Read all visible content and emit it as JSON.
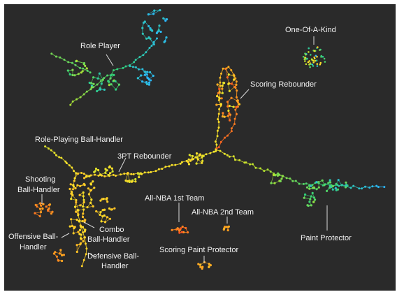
{
  "diagram": {
    "background_color": "#2a2a2a",
    "label_color": "#f2f2f2",
    "node_gradient": [
      "#2bb7ff",
      "#31d07a",
      "#b9e32d",
      "#ffe12a",
      "#ff9b1f",
      "#ff4b21"
    ],
    "labels": {
      "role_player": "Role Player",
      "one_of_a_kind": "One-Of-A-Kind",
      "scoring_rebounder": "Scoring Rebounder",
      "role_playing_ball_handler": "Role-Playing Ball-Handler",
      "three_pt_rebounder": "3PT Rebounder",
      "shooting_ball_handler_1": "Shooting",
      "shooting_ball_handler_2": "Ball-Handler",
      "all_nba_1st_team": "All-NBA 1st Team",
      "all_nba_2nd_team": "All-NBA 2nd Team",
      "combo_ball_handler_1": "Combo",
      "combo_ball_handler_2": "Ball-Handler",
      "offensive_ball_handler_1": "Offensive Ball-",
      "offensive_ball_handler_2": "Handler",
      "defensive_ball_handler_1": "Defensive Ball-",
      "defensive_ball_handler_2": "Handler",
      "paint_protector": "Paint Protector",
      "scoring_paint_protector": "Scoring Paint Protector"
    }
  }
}
